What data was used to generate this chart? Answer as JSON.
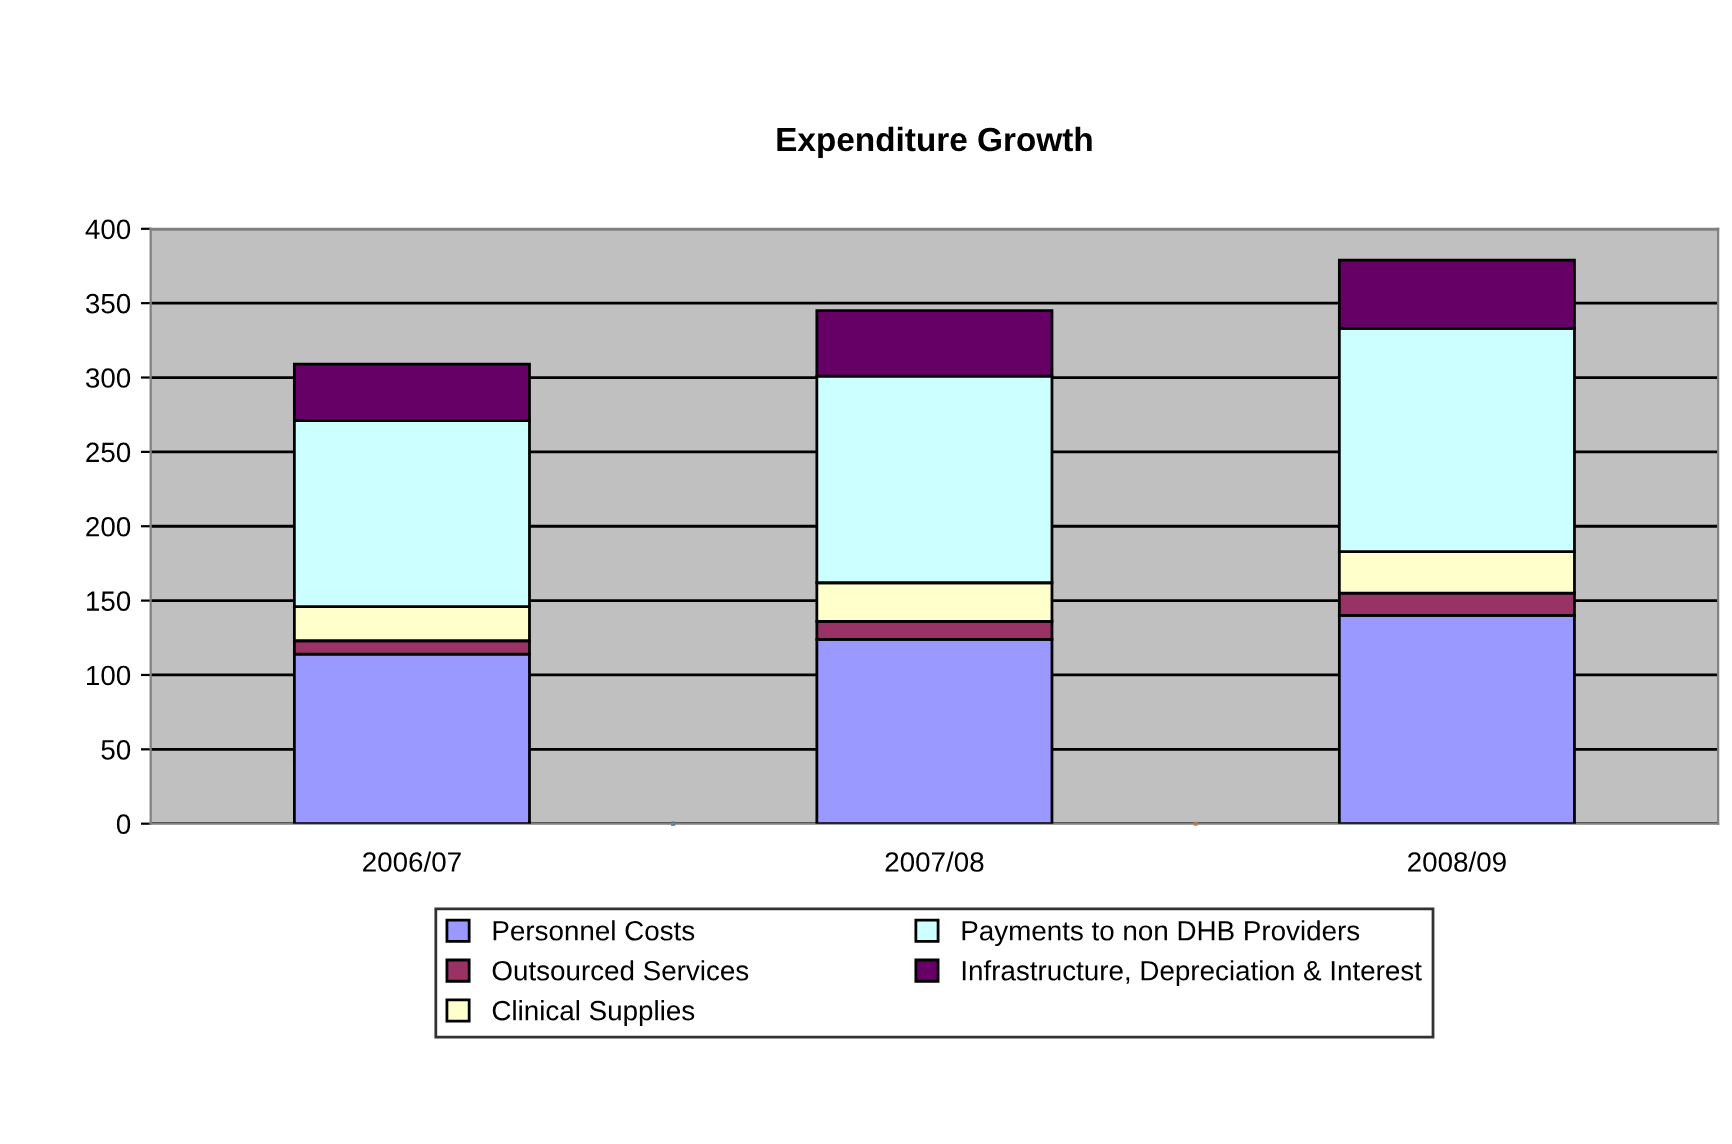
{
  "chart_data": {
    "type": "bar",
    "title": "Expenditure Growth",
    "stacked": true,
    "categories": [
      "2006/07",
      "2007/08",
      "2008/09"
    ],
    "series": [
      {
        "name": "Personnel Costs",
        "color": "#9999ff",
        "values": [
          114,
          124,
          140
        ]
      },
      {
        "name": "Outsourced Services",
        "color": "#993366",
        "values": [
          9,
          12,
          15
        ]
      },
      {
        "name": "Clinical Supplies",
        "color": "#ffffcc",
        "values": [
          23,
          26,
          28
        ]
      },
      {
        "name": "Payments to non DHB Providers",
        "color": "#ccffff",
        "values": [
          125,
          139,
          150
        ]
      },
      {
        "name": "Infrastructure, Depreciation & Interest",
        "color": "#660066",
        "values": [
          38,
          44,
          46
        ]
      }
    ],
    "ylim": [
      0,
      400
    ],
    "yticks": [
      0,
      50,
      100,
      150,
      200,
      250,
      300,
      350,
      400
    ],
    "grid": "y",
    "legend": "bottom"
  }
}
